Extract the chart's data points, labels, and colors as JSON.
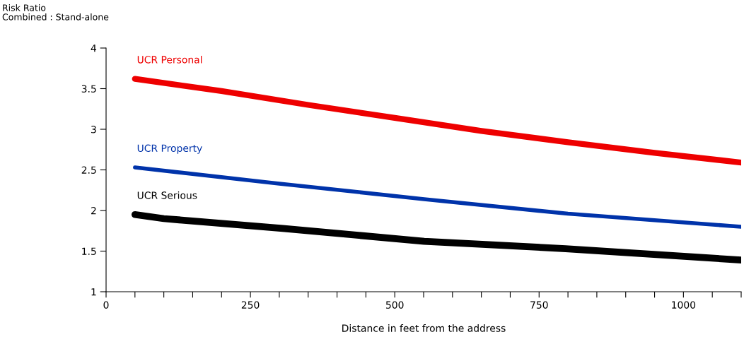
{
  "chart_data": {
    "type": "line",
    "ylabel": "Risk Ratio\nCombined : Stand-alone",
    "xlabel": "Distance in feet from the address",
    "xlim": [
      0,
      1100
    ],
    "xticks": [
      0,
      {
        "value": 50,
        "label": null
      },
      {
        "value": 100,
        "label": null
      },
      {
        "value": 150,
        "label": null
      },
      {
        "value": 200,
        "label": null
      },
      250,
      {
        "value": 300,
        "label": null
      },
      {
        "value": 350,
        "label": null
      },
      {
        "value": 400,
        "label": null
      },
      {
        "value": 450,
        "label": null
      },
      500,
      {
        "value": 550,
        "label": null
      },
      {
        "value": 600,
        "label": null
      },
      {
        "value": 650,
        "label": null
      },
      {
        "value": 700,
        "label": null
      },
      750,
      {
        "value": 800,
        "label": null
      },
      {
        "value": 850,
        "label": null
      },
      {
        "value": 900,
        "label": null
      },
      {
        "value": 950,
        "label": null
      },
      1000,
      {
        "value": 1050,
        "label": null
      },
      {
        "value": 1100,
        "label": null
      }
    ],
    "ylim": [
      1,
      4
    ],
    "yticks": [
      1,
      1.5,
      2,
      2.5,
      3,
      3.5,
      4
    ],
    "grid": false,
    "legend": false,
    "series": [
      {
        "name": "UCR Personal",
        "color": "#ee0000",
        "x": [
          50,
          200,
          350,
          500,
          650,
          800,
          950,
          1100
        ],
        "values": [
          3.62,
          3.47,
          3.3,
          3.14,
          2.98,
          2.84,
          2.71,
          2.59
        ]
      },
      {
        "name": "UCR Property",
        "color": "#0033aa",
        "x": [
          50,
          300,
          551,
          800,
          1100
        ],
        "values": [
          2.53,
          2.33,
          2.14,
          1.96,
          1.8
        ]
      },
      {
        "name": "UCR Serious",
        "color": "#000000",
        "x": [
          50,
          100,
          306,
          551,
          796,
          1100
        ],
        "values": [
          1.95,
          1.9,
          1.78,
          1.62,
          1.53,
          1.39
        ]
      }
    ]
  }
}
